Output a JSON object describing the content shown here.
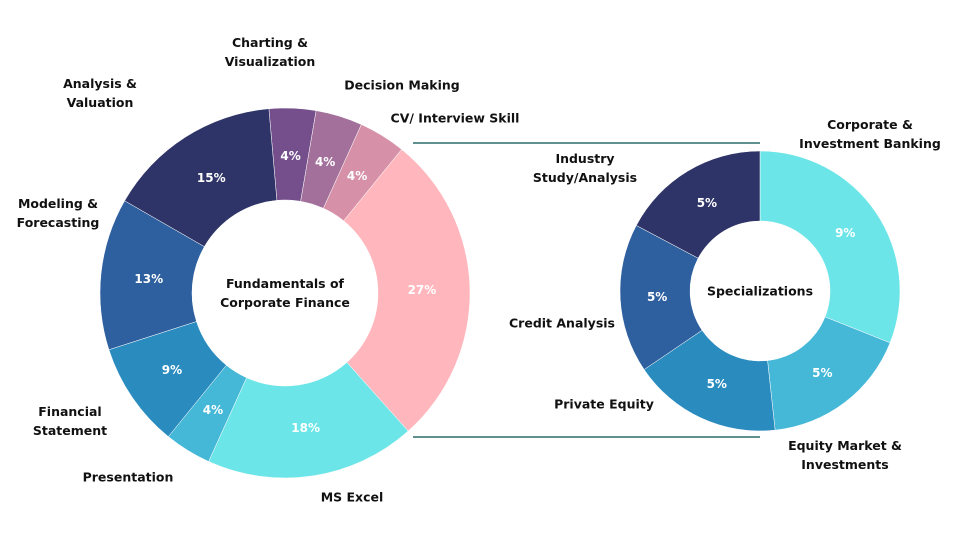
{
  "chart_data": [
    {
      "type": "pie",
      "center_label": "Fundamentals of Corporate Finance",
      "categories": [
        "Charting & Visualization",
        "Decision Making",
        "CV/ Interview Skill",
        null,
        "MS Excel",
        "Presentation",
        "Financial Statement",
        "Modeling & Forecasting",
        "Analysis & Valuation"
      ],
      "values": [
        4,
        4,
        4,
        27,
        18,
        4,
        9,
        13,
        15
      ],
      "value_labels": [
        "4%",
        "4%",
        "4%",
        "27%",
        "18%",
        "4%",
        "9%",
        "13%",
        "15%"
      ],
      "colors": [
        "#744f8b",
        "#a3709c",
        "#d690a8",
        "#ffb6bc",
        "#6ce5e8",
        "#45b8d8",
        "#2a8bbf",
        "#2e5f9e",
        "#2e3467"
      ]
    },
    {
      "type": "pie",
      "center_label": "Specializations",
      "categories": [
        "Corporate & Investment Banking",
        "Equity Market & Investments",
        "Private Equity",
        "Credit Analysis",
        "Industry Study/Analysis"
      ],
      "values": [
        9,
        5,
        5,
        5,
        5
      ],
      "value_labels": [
        "9%",
        "5%",
        "5%",
        "5%",
        "5%"
      ],
      "colors": [
        "#6ce5e8",
        "#45b8d8",
        "#2a8bbf",
        "#2e5f9e",
        "#2e3467"
      ]
    }
  ]
}
